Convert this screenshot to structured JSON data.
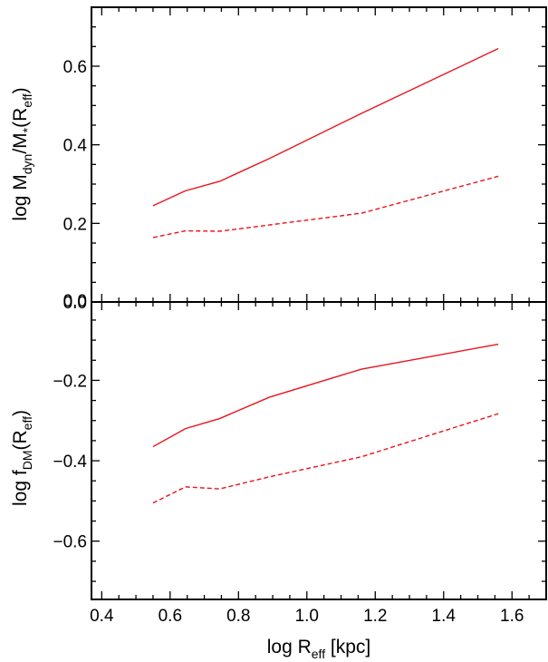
{
  "chart_data": [
    {
      "type": "line",
      "panel": "top",
      "ylabel": {
        "base": "log M",
        "sub1": "dyn",
        "mid": "/M",
        "sub2": "*",
        "mid2": "(R",
        "sub3": "eff",
        "end": ")"
      },
      "xlim": [
        0.37,
        1.7
      ],
      "ylim": [
        0.0,
        0.75
      ],
      "ytick_values": [
        0.0,
        0.2,
        0.4,
        0.6
      ],
      "ytick_labels": [
        "0.0",
        "0.2",
        "0.4",
        "0.6"
      ],
      "series": [
        {
          "style": "solid",
          "color": "#e8141c",
          "x": [
            0.55,
            0.645,
            0.745,
            0.89,
            1.16,
            1.56
          ],
          "y": [
            0.245,
            0.283,
            0.307,
            0.365,
            0.48,
            0.645
          ]
        },
        {
          "style": "dashed",
          "color": "#e8141c",
          "x": [
            0.55,
            0.645,
            0.745,
            0.89,
            1.16,
            1.56
          ],
          "y": [
            0.164,
            0.181,
            0.18,
            0.196,
            0.226,
            0.32
          ]
        }
      ]
    },
    {
      "type": "line",
      "panel": "bottom",
      "ylabel": {
        "base": "log f",
        "sub1": "DM",
        "mid": "(R",
        "sub2": "eff",
        "end": ")"
      },
      "xlabel": {
        "base": "log R",
        "sub": "eff",
        "end": " [kpc]"
      },
      "xlim": [
        0.37,
        1.7
      ],
      "ylim": [
        -0.745,
        -0.005
      ],
      "xtick_values": [
        0.4,
        0.6,
        0.8,
        1.0,
        1.2,
        1.4,
        1.6
      ],
      "xtick_labels": [
        "0.4",
        "0.6",
        "0.8",
        "1.0",
        "1.2",
        "1.4",
        "1.6"
      ],
      "ytick_values": [
        -0.6,
        -0.4,
        -0.2,
        0.0
      ],
      "ytick_labels": [
        "−0.6",
        "−0.4",
        "−0.2",
        "0.0"
      ],
      "series": [
        {
          "style": "solid",
          "color": "#e8141c",
          "x": [
            0.55,
            0.645,
            0.745,
            0.89,
            1.16,
            1.56
          ],
          "y": [
            -0.365,
            -0.32,
            -0.295,
            -0.242,
            -0.172,
            -0.11
          ]
        },
        {
          "style": "dashed",
          "color": "#e8141c",
          "x": [
            0.55,
            0.645,
            0.745,
            0.89,
            1.16,
            1.56
          ],
          "y": [
            -0.505,
            -0.465,
            -0.47,
            -0.44,
            -0.39,
            -0.283
          ]
        }
      ]
    }
  ]
}
